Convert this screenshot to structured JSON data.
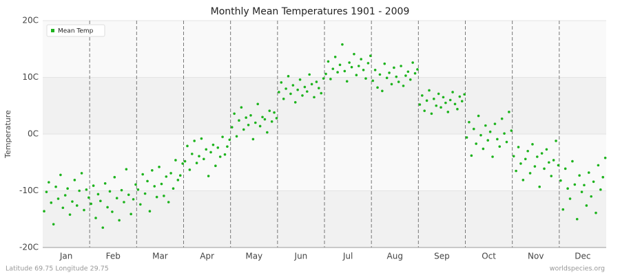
{
  "chart_data": {
    "type": "scatter",
    "title": "Monthly Mean Temperatures 1901 - 2009",
    "y_label": "Temperature",
    "footer_left": "Latitude 69.75 Longitude 29.75",
    "footer_right": "worldspecies.org",
    "legend": "upper left",
    "grid": true,
    "xlim": [
      0,
      12
    ],
    "xticks": [
      {
        "value": 0.5,
        "label": "Jan"
      },
      {
        "value": 1.5,
        "label": "Feb"
      },
      {
        "value": 2.5,
        "label": "Mar"
      },
      {
        "value": 3.5,
        "label": "Apr"
      },
      {
        "value": 4.5,
        "label": "May"
      },
      {
        "value": 5.5,
        "label": "Jun"
      },
      {
        "value": 6.5,
        "label": "Jul"
      },
      {
        "value": 7.5,
        "label": "Aug"
      },
      {
        "value": 8.5,
        "label": "Sep"
      },
      {
        "value": 9.5,
        "label": "Oct"
      },
      {
        "value": 10.5,
        "label": "Nov"
      },
      {
        "value": 11.5,
        "label": "Dec"
      }
    ],
    "ylim": [
      -20,
      20
    ],
    "yticks": [
      {
        "value": -20,
        "label": "-20C"
      },
      {
        "value": -10,
        "label": "-10C"
      },
      {
        "value": 0,
        "label": "0C"
      },
      {
        "value": 10,
        "label": "10C"
      },
      {
        "value": 20,
        "label": "20C"
      }
    ],
    "series": [
      {
        "name": "Mean Temp",
        "color": "#1db31d",
        "x": [
          0.03,
          0.08,
          0.13,
          0.18,
          0.23,
          0.28,
          0.33,
          0.38,
          0.43,
          0.48,
          0.53,
          0.58,
          0.63,
          0.68,
          0.73,
          0.78,
          0.83,
          0.88,
          0.93,
          0.98,
          1.03,
          1.08,
          1.13,
          1.18,
          1.23,
          1.28,
          1.33,
          1.38,
          1.43,
          1.48,
          1.53,
          1.58,
          1.63,
          1.68,
          1.73,
          1.78,
          1.83,
          1.88,
          1.93,
          1.98,
          2.03,
          2.08,
          2.13,
          2.18,
          2.23,
          2.28,
          2.33,
          2.38,
          2.43,
          2.48,
          2.53,
          2.58,
          2.63,
          2.68,
          2.73,
          2.78,
          2.83,
          2.88,
          2.93,
          2.98,
          3.03,
          3.08,
          3.13,
          3.18,
          3.23,
          3.28,
          3.33,
          3.38,
          3.43,
          3.48,
          3.53,
          3.58,
          3.63,
          3.68,
          3.73,
          3.78,
          3.83,
          3.88,
          3.93,
          3.98,
          4.03,
          4.08,
          4.13,
          4.18,
          4.23,
          4.28,
          4.33,
          4.38,
          4.43,
          4.48,
          4.53,
          4.58,
          4.63,
          4.68,
          4.73,
          4.78,
          4.83,
          4.88,
          4.93,
          4.98,
          5.03,
          5.08,
          5.13,
          5.18,
          5.23,
          5.28,
          5.33,
          5.38,
          5.43,
          5.48,
          5.53,
          5.58,
          5.63,
          5.68,
          5.73,
          5.78,
          5.83,
          5.88,
          5.93,
          5.98,
          6.03,
          6.08,
          6.13,
          6.18,
          6.23,
          6.28,
          6.33,
          6.38,
          6.43,
          6.48,
          6.53,
          6.58,
          6.63,
          6.68,
          6.73,
          6.78,
          6.83,
          6.88,
          6.93,
          6.98,
          7.03,
          7.08,
          7.13,
          7.18,
          7.23,
          7.28,
          7.33,
          7.38,
          7.43,
          7.48,
          7.53,
          7.58,
          7.63,
          7.68,
          7.73,
          7.78,
          7.83,
          7.88,
          7.93,
          7.98,
          8.03,
          8.08,
          8.13,
          8.18,
          8.23,
          8.28,
          8.33,
          8.38,
          8.43,
          8.48,
          8.53,
          8.58,
          8.63,
          8.68,
          8.73,
          8.78,
          8.83,
          8.88,
          8.93,
          8.98,
          9.03,
          9.08,
          9.13,
          9.18,
          9.23,
          9.28,
          9.33,
          9.38,
          9.43,
          9.48,
          9.53,
          9.58,
          9.63,
          9.68,
          9.73,
          9.78,
          9.83,
          9.88,
          9.93,
          9.98,
          10.03,
          10.08,
          10.13,
          10.18,
          10.23,
          10.28,
          10.33,
          10.38,
          10.43,
          10.48,
          10.53,
          10.58,
          10.63,
          10.68,
          10.73,
          10.78,
          10.83,
          10.88,
          10.93,
          10.98,
          11.03,
          11.08,
          11.13,
          11.18,
          11.23,
          11.28,
          11.33,
          11.38,
          11.43,
          11.48,
          11.53,
          11.58,
          11.63,
          11.68,
          11.73,
          11.78,
          11.83,
          11.88,
          11.93,
          11.98
        ],
        "values": [
          -13.6,
          -10.2,
          -8.5,
          -12.1,
          -15.9,
          -9.3,
          -11.4,
          -7.2,
          -13.0,
          -10.8,
          -9.6,
          -14.2,
          -11.9,
          -8.1,
          -12.6,
          -10.0,
          -6.9,
          -13.4,
          -9.8,
          -11.2,
          -12.3,
          -9.1,
          -14.8,
          -10.6,
          -11.8,
          -16.5,
          -8.7,
          -12.9,
          -10.1,
          -13.7,
          -7.6,
          -11.3,
          -15.2,
          -9.9,
          -12.0,
          -6.2,
          -10.7,
          -14.1,
          -11.5,
          -8.9,
          -9.8,
          -12.4,
          -7.1,
          -10.5,
          -8.3,
          -13.6,
          -6.4,
          -9.2,
          -11.1,
          -5.8,
          -8.8,
          -10.9,
          -7.5,
          -12.0,
          -6.9,
          -9.6,
          -4.6,
          -8.1,
          -7.3,
          -5.2,
          -4.8,
          -2.1,
          -6.3,
          -3.5,
          -1.2,
          -5.1,
          -3.9,
          -0.8,
          -4.4,
          -2.7,
          -7.4,
          -3.2,
          -1.9,
          -5.6,
          -2.4,
          -4.0,
          -0.5,
          -3.6,
          -2.2,
          -1.0,
          1.2,
          3.6,
          -0.4,
          2.4,
          4.7,
          0.8,
          2.9,
          1.6,
          3.3,
          -0.9,
          2.0,
          5.3,
          1.4,
          3.0,
          2.6,
          0.3,
          4.1,
          2.2,
          3.8,
          2.8,
          7.4,
          9.1,
          6.2,
          8.0,
          10.2,
          7.1,
          8.6,
          5.6,
          7.8,
          9.6,
          6.8,
          8.3,
          7.5,
          10.5,
          8.8,
          6.5,
          9.2,
          8.1,
          7.2,
          9.8,
          10.6,
          12.8,
          9.7,
          11.5,
          13.6,
          10.9,
          12.2,
          15.8,
          11.1,
          9.3,
          12.6,
          11.8,
          14.1,
          10.4,
          12.0,
          13.2,
          11.3,
          9.8,
          12.5,
          13.8,
          9.4,
          11.3,
          8.2,
          10.5,
          7.6,
          12.4,
          9.9,
          10.8,
          8.8,
          11.7,
          10.1,
          9.2,
          12.0,
          8.5,
          10.3,
          11.0,
          9.6,
          12.6,
          10.7,
          11.4,
          5.2,
          6.8,
          4.1,
          5.9,
          7.7,
          3.6,
          6.2,
          5.0,
          7.1,
          4.7,
          6.5,
          5.5,
          3.9,
          6.0,
          7.4,
          5.3,
          4.4,
          6.6,
          5.8,
          7.0,
          -0.6,
          2.1,
          -3.8,
          0.9,
          -1.7,
          3.2,
          -0.2,
          -2.6,
          1.5,
          -1.1,
          0.4,
          -4.0,
          1.8,
          -0.9,
          -2.2,
          2.7,
          0.1,
          -1.4,
          3.9,
          0.6,
          -3.9,
          -6.5,
          -2.3,
          -5.2,
          -8.1,
          -4.4,
          -3.0,
          -6.9,
          -1.8,
          -5.7,
          -4.0,
          -9.3,
          -3.4,
          -6.1,
          -2.7,
          -5.0,
          -7.4,
          -4.6,
          -1.2,
          -5.5,
          -8.2,
          -13.3,
          -6.1,
          -9.6,
          -11.4,
          -4.8,
          -8.9,
          -15.0,
          -7.3,
          -10.2,
          -9.0,
          -12.6,
          -6.8,
          -11.0,
          -8.4,
          -13.9,
          -5.5,
          -9.8,
          -7.6,
          -4.2
        ]
      }
    ]
  }
}
